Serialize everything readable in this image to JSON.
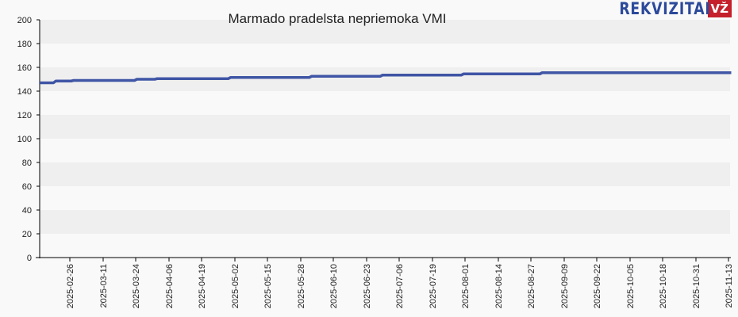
{
  "header": {
    "title": "Marmado pradelsta nepriemoka VMI",
    "logo_text": "REKVIZITAI",
    "logo_badge": "VŽ"
  },
  "colors": {
    "line": "#3f55a5",
    "band_dark": "#efefef",
    "band_light": "#f9f9f9",
    "logo_blue": "#2c4a9b",
    "logo_red": "#c41f2b"
  },
  "chart_data": {
    "type": "line",
    "title": "Marmado pradelsta nepriemoka VMI",
    "xlabel": "",
    "ylabel": "",
    "ylim": [
      0,
      200
    ],
    "yticks": [
      0,
      20,
      40,
      60,
      80,
      100,
      120,
      140,
      160,
      180,
      200
    ],
    "grid": "alternating horizontal bands",
    "legend": "none",
    "xticks": [
      "2025-02-26",
      "2025-03-11",
      "2025-03-24",
      "2025-04-06",
      "2025-04-19",
      "2025-05-02",
      "2025-05-15",
      "2025-05-28",
      "2025-06-10",
      "2025-06-23",
      "2025-07-06",
      "2025-07-19",
      "2025-08-01",
      "2025-08-14",
      "2025-08-27",
      "2025-09-09",
      "2025-09-22",
      "2025-10-05",
      "2025-10-18",
      "2025-10-31",
      "2025-11-13"
    ],
    "series": [
      {
        "name": "Marmado pradelsta nepriemoka VMI",
        "points": [
          {
            "x": "2025-02-14",
            "y": 147.0
          },
          {
            "x": "2025-02-20",
            "y": 148.5
          },
          {
            "x": "2025-02-27",
            "y": 149.0
          },
          {
            "x": "2025-03-24",
            "y": 150.0
          },
          {
            "x": "2025-04-01",
            "y": 150.5
          },
          {
            "x": "2025-04-30",
            "y": 151.5
          },
          {
            "x": "2025-06-01",
            "y": 152.5
          },
          {
            "x": "2025-06-29",
            "y": 153.5
          },
          {
            "x": "2025-07-31",
            "y": 154.5
          },
          {
            "x": "2025-08-31",
            "y": 155.5
          },
          {
            "x": "2025-11-15",
            "y": 155.5
          }
        ]
      }
    ]
  }
}
